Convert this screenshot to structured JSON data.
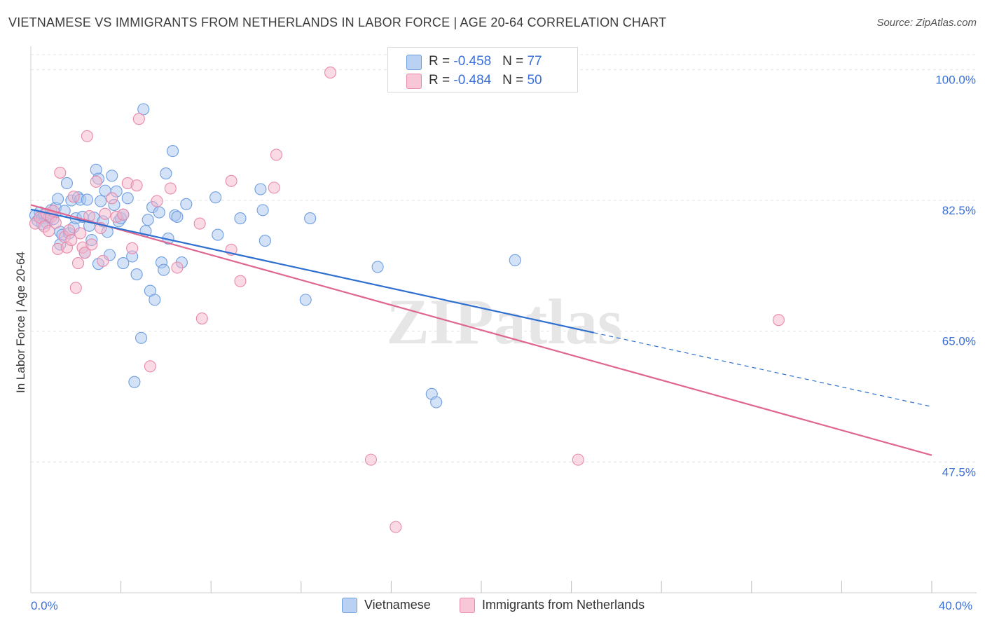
{
  "title": "VIETNAMESE VS IMMIGRANTS FROM NETHERLANDS IN LABOR FORCE | AGE 20-64 CORRELATION CHART",
  "source": "Source: ZipAtlas.com",
  "watermark": "ZIPatlas",
  "legend_top": {
    "rows": [
      {
        "r_label": "R = ",
        "r_value": "-0.458",
        "n_label": "N = ",
        "n_value": "77"
      },
      {
        "r_label": "R = ",
        "r_value": "-0.484",
        "n_label": "N = ",
        "n_value": "50"
      }
    ]
  },
  "legend_bottom": {
    "items": [
      "Vietnamese",
      "Immigrants from Netherlands"
    ]
  },
  "chart_data": {
    "type": "scatter",
    "title": "VIETNAMESE VS IMMIGRANTS FROM NETHERLANDS IN LABOR FORCE | AGE 20-64 CORRELATION CHART",
    "xlabel": "",
    "ylabel": "In Labor Force | Age 20-64",
    "xlim": [
      0,
      40
    ],
    "ylim": [
      30,
      102
    ],
    "x_tick_labels": [
      {
        "value": 0,
        "label": "0.0%"
      },
      {
        "value": 40,
        "label": "40.0%"
      }
    ],
    "y_tick_labels": [
      {
        "value": 100,
        "label": "100.0%"
      },
      {
        "value": 82.5,
        "label": "82.5%"
      },
      {
        "value": 65,
        "label": "65.0%"
      },
      {
        "value": 47.5,
        "label": "47.5%"
      }
    ],
    "grid": true,
    "legend_position": "top-center",
    "colors": {
      "blue_fill": "#a9c6ef",
      "blue_stroke": "#6e9ee0",
      "blue_line": "#2f6fd0",
      "pink_fill": "#f4b6cb",
      "pink_stroke": "#e88aab",
      "pink_line": "#e0668f",
      "tick_label": "#3a6fd8",
      "grid": "#e3e3e3"
    },
    "series": [
      {
        "name": "Vietnamese",
        "color": "#a9c6ef",
        "r": -0.458,
        "n": 77,
        "trend": {
          "x": [
            0,
            25
          ],
          "y": [
            81.3,
            64.8
          ]
        },
        "trend_dashed": {
          "x": [
            25,
            40
          ],
          "y": [
            64.8,
            54.9
          ]
        },
        "points": [
          [
            0.2,
            80.5
          ],
          [
            0.3,
            79.8
          ],
          [
            0.4,
            80.9
          ],
          [
            0.5,
            80.1
          ],
          [
            0.6,
            80.6
          ],
          [
            0.7,
            79.5
          ],
          [
            0.8,
            80.3
          ],
          [
            0.9,
            81.2
          ],
          [
            1.0,
            80.0
          ],
          [
            1.1,
            81.5
          ],
          [
            1.2,
            82.7
          ],
          [
            1.3,
            78.3
          ],
          [
            1.4,
            77.9
          ],
          [
            1.5,
            81.1
          ],
          [
            1.6,
            84.8
          ],
          [
            1.7,
            78.1
          ],
          [
            1.8,
            82.5
          ],
          [
            1.9,
            78.9
          ],
          [
            2.0,
            80.1
          ],
          [
            2.1,
            82.9
          ],
          [
            2.2,
            82.6
          ],
          [
            2.3,
            80.3
          ],
          [
            2.4,
            75.5
          ],
          [
            2.5,
            82.6
          ],
          [
            2.6,
            79.1
          ],
          [
            2.7,
            77.2
          ],
          [
            2.8,
            80.2
          ],
          [
            2.9,
            86.6
          ],
          [
            3.0,
            85.4
          ],
          [
            3.1,
            82.4
          ],
          [
            3.2,
            79.7
          ],
          [
            3.3,
            83.8
          ],
          [
            3.4,
            78.3
          ],
          [
            3.5,
            75.2
          ],
          [
            3.6,
            85.8
          ],
          [
            3.7,
            81.9
          ],
          [
            3.8,
            83.7
          ],
          [
            3.9,
            79.7
          ],
          [
            4.0,
            80.1
          ],
          [
            4.1,
            80.6
          ],
          [
            4.3,
            82.8
          ],
          [
            4.5,
            75.0
          ],
          [
            4.6,
            58.2
          ],
          [
            4.7,
            72.6
          ],
          [
            4.9,
            64.1
          ],
          [
            5.1,
            78.4
          ],
          [
            5.2,
            79.9
          ],
          [
            5.3,
            70.4
          ],
          [
            5.4,
            81.6
          ],
          [
            5.5,
            69.2
          ],
          [
            5.7,
            80.9
          ],
          [
            5.8,
            74.2
          ],
          [
            5.9,
            73.2
          ],
          [
            6.0,
            86.1
          ],
          [
            6.1,
            77.4
          ],
          [
            6.3,
            89.1
          ],
          [
            6.4,
            80.5
          ],
          [
            6.5,
            80.3
          ],
          [
            6.7,
            74.2
          ],
          [
            6.9,
            82.0
          ],
          [
            8.2,
            82.9
          ],
          [
            8.3,
            77.9
          ],
          [
            9.3,
            80.1
          ],
          [
            10.2,
            84.0
          ],
          [
            10.3,
            81.2
          ],
          [
            10.4,
            77.1
          ],
          [
            12.4,
            80.1
          ],
          [
            12.2,
            69.2
          ],
          [
            15.4,
            73.6
          ],
          [
            17.8,
            56.6
          ],
          [
            18.0,
            55.5
          ],
          [
            21.5,
            74.5
          ],
          [
            0.5,
            79.3
          ],
          [
            1.3,
            76.6
          ],
          [
            4.1,
            74.1
          ],
          [
            5.0,
            94.7
          ],
          [
            3.0,
            74.0
          ]
        ]
      },
      {
        "name": "Immigrants from Netherlands",
        "color": "#f4b6cb",
        "r": -0.484,
        "n": 50,
        "trend": {
          "x": [
            0,
            40
          ],
          "y": [
            81.9,
            48.4
          ]
        },
        "points": [
          [
            0.2,
            79.4
          ],
          [
            0.4,
            80.2
          ],
          [
            0.6,
            79.0
          ],
          [
            0.7,
            80.7
          ],
          [
            0.8,
            78.4
          ],
          [
            0.9,
            80.3
          ],
          [
            1.0,
            81.1
          ],
          [
            1.1,
            79.5
          ],
          [
            1.2,
            76.0
          ],
          [
            1.3,
            86.2
          ],
          [
            1.5,
            77.6
          ],
          [
            1.6,
            76.2
          ],
          [
            1.7,
            78.5
          ],
          [
            1.8,
            77.2
          ],
          [
            1.9,
            83.0
          ],
          [
            2.0,
            70.8
          ],
          [
            2.1,
            74.1
          ],
          [
            2.2,
            78.1
          ],
          [
            2.3,
            76.2
          ],
          [
            2.4,
            75.5
          ],
          [
            2.5,
            91.1
          ],
          [
            2.6,
            80.4
          ],
          [
            2.7,
            76.6
          ],
          [
            2.9,
            85.0
          ],
          [
            3.1,
            78.8
          ],
          [
            3.3,
            80.7
          ],
          [
            3.6,
            82.8
          ],
          [
            3.8,
            80.3
          ],
          [
            4.1,
            80.6
          ],
          [
            4.3,
            84.8
          ],
          [
            4.5,
            76.1
          ],
          [
            4.7,
            84.5
          ],
          [
            4.8,
            93.4
          ],
          [
            5.3,
            60.3
          ],
          [
            5.6,
            82.4
          ],
          [
            6.2,
            84.1
          ],
          [
            6.5,
            73.5
          ],
          [
            7.5,
            79.4
          ],
          [
            7.6,
            66.7
          ],
          [
            8.9,
            85.1
          ],
          [
            8.9,
            75.9
          ],
          [
            9.3,
            71.7
          ],
          [
            10.9,
            88.6
          ],
          [
            10.8,
            84.2
          ],
          [
            13.3,
            99.6
          ],
          [
            15.1,
            47.8
          ],
          [
            16.2,
            38.8
          ],
          [
            24.3,
            47.8
          ],
          [
            33.2,
            66.5
          ],
          [
            3.2,
            74.4
          ]
        ]
      }
    ]
  }
}
